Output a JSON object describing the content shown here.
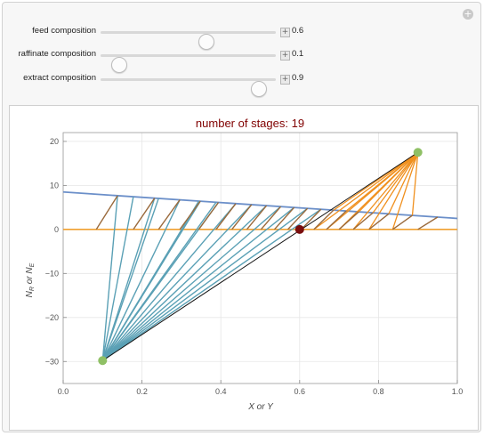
{
  "controls": [
    {
      "label": "feed composition",
      "value": "0.6",
      "fraction": 0.6
    },
    {
      "label": "raffinate composition",
      "value": "0.1",
      "fraction": 0.1
    },
    {
      "label": "extract composition",
      "value": "0.9",
      "fraction": 0.9
    }
  ],
  "chart_data": {
    "type": "line",
    "title": "number of stages: 19",
    "xlabel": "X or Y",
    "ylabel": "N_R or N_E",
    "xlim": [
      0,
      1
    ],
    "ylim": [
      -35,
      22
    ],
    "x_ticks": [
      "0.0",
      "0.2",
      "0.4",
      "0.6",
      "0.8",
      "1.0"
    ],
    "y_ticks": [
      "20",
      "10",
      "0",
      "−10",
      "−20",
      "−30"
    ],
    "grid": true,
    "colors": {
      "extract_curve": "#6b8fc9",
      "raffinate_line": "#f0a030",
      "tie_line": "#9a6a3c",
      "operating_line": "#5aa0b5",
      "construction_line": "#f0901e",
      "feed_point": "#7a0d0d",
      "end_point": "#8fc065",
      "title": "#800000"
    },
    "feed_point": {
      "x": 0.6,
      "y": 0
    },
    "delta_minus": {
      "x": 0.1,
      "y": -29.8
    },
    "delta_plus": {
      "x": 0.9,
      "y": 17.5
    },
    "extract_curve": {
      "x": [
        0.0,
        1.0
      ],
      "y": [
        8.5,
        2.5
      ]
    },
    "raffinate_line": {
      "x": [
        0.0,
        1.0
      ],
      "y": [
        0,
        0
      ]
    },
    "tie_lines": [
      {
        "x1": 0.084,
        "y1": 0,
        "x2": 0.138,
        "y2": 7.6
      },
      {
        "x1": 0.178,
        "y1": 0,
        "x2": 0.232,
        "y2": 7.1
      },
      {
        "x1": 0.242,
        "y1": 0,
        "x2": 0.296,
        "y2": 6.7
      },
      {
        "x1": 0.296,
        "y1": 0,
        "x2": 0.348,
        "y2": 6.4
      },
      {
        "x1": 0.344,
        "y1": 0,
        "x2": 0.394,
        "y2": 6.1
      },
      {
        "x1": 0.388,
        "y1": 0,
        "x2": 0.438,
        "y2": 5.8
      },
      {
        "x1": 0.428,
        "y1": 0,
        "x2": 0.478,
        "y2": 5.5
      },
      {
        "x1": 0.466,
        "y1": 0,
        "x2": 0.516,
        "y2": 5.3
      },
      {
        "x1": 0.502,
        "y1": 0,
        "x2": 0.552,
        "y2": 5.1
      },
      {
        "x1": 0.536,
        "y1": 0,
        "x2": 0.586,
        "y2": 4.9
      },
      {
        "x1": 0.57,
        "y1": 0,
        "x2": 0.62,
        "y2": 4.7
      },
      {
        "x1": 0.604,
        "y1": 0,
        "x2": 0.654,
        "y2": 4.5
      },
      {
        "x1": 0.636,
        "y1": 0,
        "x2": 0.686,
        "y2": 4.3
      },
      {
        "x1": 0.668,
        "y1": 0,
        "x2": 0.718,
        "y2": 4.1
      },
      {
        "x1": 0.7,
        "y1": 0,
        "x2": 0.75,
        "y2": 3.9
      },
      {
        "x1": 0.736,
        "y1": 0,
        "x2": 0.786,
        "y2": 3.7
      },
      {
        "x1": 0.776,
        "y1": 0,
        "x2": 0.826,
        "y2": 3.5
      },
      {
        "x1": 0.836,
        "y1": 0,
        "x2": 0.886,
        "y2": 3.3
      },
      {
        "x1": 0.9,
        "y1": 0,
        "x2": 0.95,
        "y2": 3.1
      }
    ],
    "operating_lines_from": "delta_minus",
    "operating_lines_to_x": [
      0.138,
      0.178,
      0.232,
      0.242,
      0.296,
      0.348,
      0.344,
      0.394,
      0.388,
      0.438,
      0.478,
      0.516,
      0.552,
      0.586,
      0.62,
      0.654
    ],
    "construction_lines_from": "delta_plus",
    "construction_lines_to_x": [
      0.636,
      0.668,
      0.7,
      0.736,
      0.776,
      0.836,
      0.686,
      0.718,
      0.75,
      0.786,
      0.826,
      0.886
    ],
    "balance_line": {
      "x": [
        0.1,
        0.9
      ],
      "y": [
        -29.8,
        17.5
      ]
    }
  }
}
